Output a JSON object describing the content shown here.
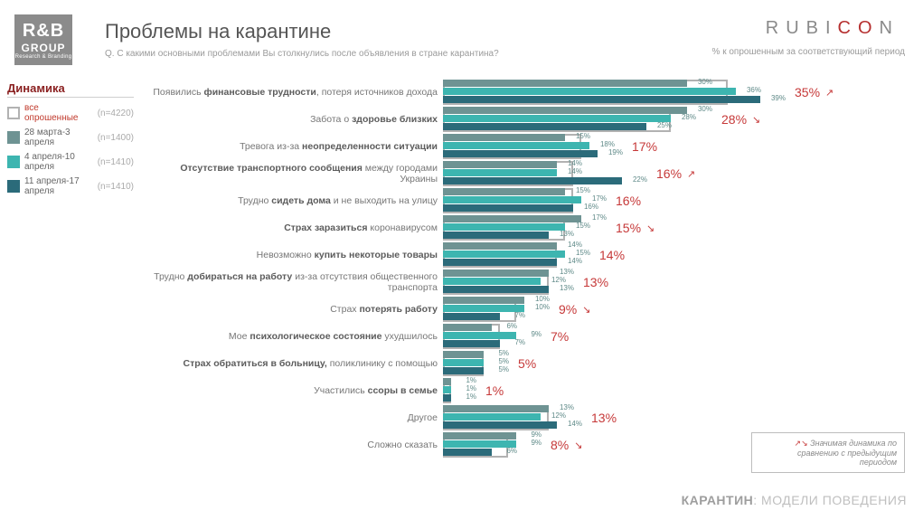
{
  "logo_left": {
    "top": "R&B",
    "mid": "GROUP",
    "sub": "Research & Branding"
  },
  "logo_right": {
    "pre": "RUBI",
    "red": "CO",
    "post": "N"
  },
  "header": {
    "title": "Проблемы на карантине",
    "question": "Q. С какими основными проблемами Вы столкнулись после объявления в стране карантина?"
  },
  "subnote_right": "% к опрошенным за соответствующий период",
  "legend": {
    "title": "Динамика",
    "items": [
      {
        "label": "все опрошенные",
        "n": "(n=4220)",
        "swatch_fill": "#ffffff",
        "swatch_border": "#b2b2b2",
        "label_class": "red"
      },
      {
        "label": "28 марта-3 апреля",
        "n": "(n=1400)",
        "swatch_fill": "#6e9393",
        "swatch_border": "#6e9393",
        "label_class": ""
      },
      {
        "label": "4 апреля-10 апреля",
        "n": "(n=1410)",
        "swatch_fill": "#3db5b0",
        "swatch_border": "#3db5b0",
        "label_class": ""
      },
      {
        "label": "11 апреля-17 апреля",
        "n": "(n=1410)",
        "swatch_fill": "#2b6b7a",
        "swatch_border": "#2b6b7a",
        "label_class": ""
      }
    ]
  },
  "chart": {
    "bar_area_width": 360,
    "max_value": 40,
    "series_colors": [
      "#6e9393",
      "#3db5b0",
      "#2b6b7a"
    ],
    "value_label_color": "#5f8a88",
    "main_pct_color": "#c63939",
    "outline_color": "#b2b2b2",
    "rows": [
      {
        "label_pre": "Появились ",
        "label_bold": "финансовые трудности",
        "label_post": ", потеря источников дохода",
        "main": 35,
        "arrow": "↗",
        "values": [
          30,
          36,
          39
        ]
      },
      {
        "label_pre": "Забота о ",
        "label_bold": "здоровье близких",
        "label_post": "",
        "main": 28,
        "arrow": "↘",
        "values": [
          30,
          28,
          25
        ]
      },
      {
        "label_pre": "Тревога из-за ",
        "label_bold": "неопределенности ситуации",
        "label_post": "",
        "main": 17,
        "arrow": "",
        "values": [
          15,
          18,
          19
        ]
      },
      {
        "label_pre": "",
        "label_bold": "Отсутствие транспортного сообщения",
        "label_post": " между городами Украины",
        "main": 16,
        "arrow": "↗",
        "values": [
          14,
          14,
          22
        ]
      },
      {
        "label_pre": "Трудно ",
        "label_bold": "сидеть дома",
        "label_post": " и не выходить на улицу",
        "main": 16,
        "arrow": "",
        "values": [
          15,
          17,
          16
        ]
      },
      {
        "label_pre": "",
        "label_bold": "Страх заразиться",
        "label_post": " коронавирусом",
        "main": 15,
        "arrow": "↘",
        "values": [
          17,
          15,
          13
        ]
      },
      {
        "label_pre": "Невозможно ",
        "label_bold": "купить некоторые товары",
        "label_post": "",
        "main": 14,
        "arrow": "",
        "values": [
          14,
          15,
          14
        ]
      },
      {
        "label_pre": "Трудно ",
        "label_bold": "добираться на работу",
        "label_post": " из-за отсутствия общественного транспорта",
        "main": 13,
        "arrow": "",
        "values": [
          13,
          12,
          13
        ]
      },
      {
        "label_pre": "Страх ",
        "label_bold": "потерять работу",
        "label_post": "",
        "main": 9,
        "arrow": "↘",
        "values": [
          10,
          10,
          7
        ]
      },
      {
        "label_pre": "Мое ",
        "label_bold": "психологическое состояние",
        "label_post": " ухудшилось",
        "main": 7,
        "arrow": "",
        "values": [
          6,
          9,
          7
        ]
      },
      {
        "label_pre": "",
        "label_bold": "Страх обратиться в больницу,",
        "label_post": " поликлинику с помощью",
        "main": 5,
        "arrow": "",
        "values": [
          5,
          5,
          5
        ]
      },
      {
        "label_pre": "Участились ",
        "label_bold": "ссоры в семье",
        "label_post": "",
        "main": 1,
        "arrow": "",
        "values": [
          1,
          1,
          1
        ]
      },
      {
        "label_pre": "",
        "label_bold": "",
        "label_post": "Другое",
        "main": 13,
        "arrow": "",
        "values": [
          13,
          12,
          14
        ]
      },
      {
        "label_pre": "",
        "label_bold": "",
        "label_post": "Сложно сказать",
        "main": 8,
        "arrow": "↘",
        "values": [
          9,
          9,
          6
        ]
      }
    ]
  },
  "footnote": {
    "arrows": "↗↘",
    "text": " Значимая динамика по сравнению с предыдущим периодом"
  },
  "footer": {
    "bold": "КАРАНТИН",
    "rest": ": МОДЕЛИ ПОВЕДЕНИЯ"
  }
}
